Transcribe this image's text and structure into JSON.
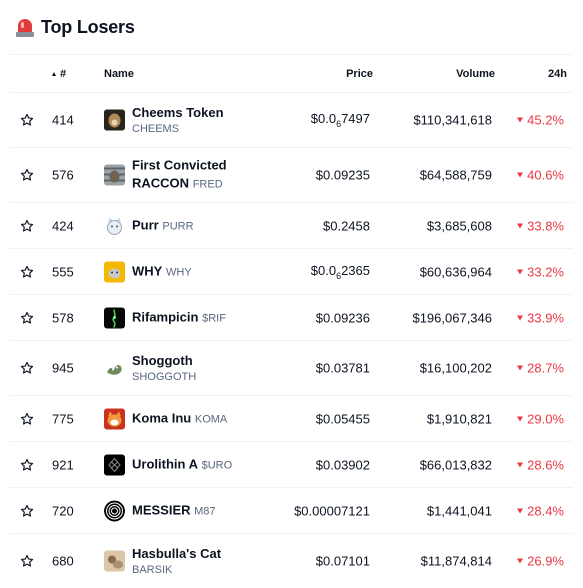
{
  "header": {
    "title": "Top Losers",
    "icon": "siren-icon"
  },
  "columns": {
    "rank": "#",
    "name": "Name",
    "price": "Price",
    "volume": "Volume",
    "change": "24h"
  },
  "colors": {
    "negative": "#ea3943",
    "text": "#0d1421",
    "muted": "#58667e",
    "border": "#eff2f5"
  },
  "rows": [
    {
      "rank": "414",
      "name": "Cheems Token",
      "symbol": "CHEEMS",
      "price_pre": "$0.0",
      "price_sub": "6",
      "price_post": "7497",
      "volume": "$110,341,618",
      "change": "45.2%"
    },
    {
      "rank": "576",
      "name": "First Convicted",
      "name2": "RACCON",
      "symbol": "FRED",
      "price": "$0.09235",
      "volume": "$64,588,759",
      "change": "40.6%"
    },
    {
      "rank": "424",
      "name": "Purr",
      "symbol": "PURR",
      "price": "$0.2458",
      "volume": "$3,685,608",
      "change": "33.8%"
    },
    {
      "rank": "555",
      "name": "WHY",
      "symbol": "WHY",
      "price_pre": "$0.0",
      "price_sub": "6",
      "price_post": "2365",
      "volume": "$60,636,964",
      "change": "33.2%"
    },
    {
      "rank": "578",
      "name": "Rifampicin",
      "symbol": "$RIF",
      "price": "$0.09236",
      "volume": "$196,067,346",
      "change": "33.9%"
    },
    {
      "rank": "945",
      "name": "Shoggoth",
      "symbol": "SHOGGOTH",
      "price": "$0.03781",
      "volume": "$16,100,202",
      "change": "28.7%"
    },
    {
      "rank": "775",
      "name": "Koma Inu",
      "symbol": "KOMA",
      "price": "$0.05455",
      "volume": "$1,910,821",
      "change": "29.0%"
    },
    {
      "rank": "921",
      "name": "Urolithin A",
      "symbol": "$URO",
      "price": "$0.03902",
      "volume": "$66,013,832",
      "change": "28.6%"
    },
    {
      "rank": "720",
      "name": "MESSIER",
      "symbol": "M87",
      "price": "$0.00007121",
      "volume": "$1,441,041",
      "change": "28.4%"
    },
    {
      "rank": "680",
      "name": "Hasbulla's Cat",
      "symbol": "BARSIK",
      "price": "$0.07101",
      "volume": "$11,874,814",
      "change": "26.9%"
    }
  ]
}
